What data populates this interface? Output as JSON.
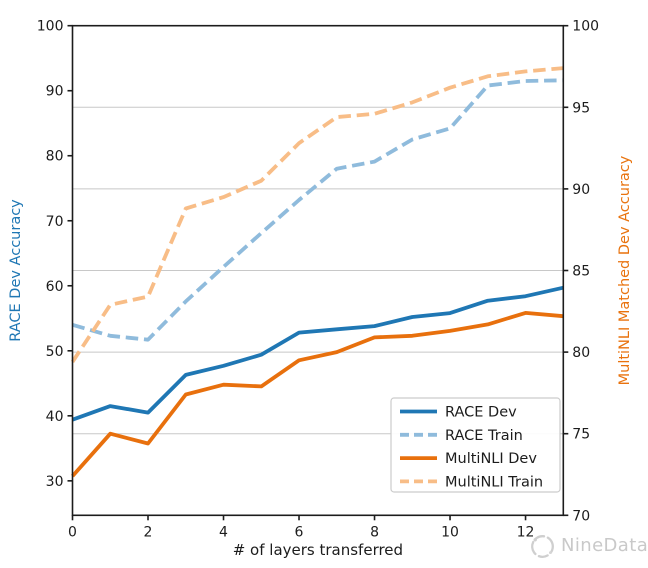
{
  "chart_data": {
    "type": "line",
    "title": "",
    "xlabel": "# of layers transferred",
    "x": [
      0,
      1,
      2,
      3,
      4,
      5,
      6,
      7,
      8,
      9,
      10,
      11,
      12,
      13
    ],
    "xlim": [
      0,
      13
    ],
    "x_ticks": [
      0,
      2,
      4,
      6,
      8,
      10,
      12
    ],
    "left_axis": {
      "label": "RACE Dev Accuracy",
      "color": "#1f77b4",
      "ticks": [
        30,
        40,
        50,
        60,
        70,
        80,
        90,
        100
      ],
      "lim": [
        24.7,
        100
      ]
    },
    "right_axis": {
      "label": "MultiNLI Matched Dev Accuracy",
      "color": "#e9730e",
      "ticks": [
        70,
        75,
        80,
        85,
        90,
        95,
        100
      ],
      "lim": [
        70,
        100
      ]
    },
    "grid": {
      "show": true,
      "follows": "right_axis_ticks",
      "color": "#c8c8c8"
    },
    "legend": {
      "position": "lower right",
      "border_color": "#cccccc",
      "entries": [
        "RACE Dev",
        "RACE Train",
        "MultiNLI Dev",
        "MultiNLI Train"
      ]
    },
    "series": [
      {
        "name": "RACE Dev",
        "axis": "left",
        "line_style": "solid",
        "color": "#1f77b4",
        "values": [
          39.4,
          41.5,
          40.5,
          46.3,
          47.7,
          49.4,
          52.8,
          53.3,
          53.8,
          55.2,
          55.8,
          57.7,
          58.4,
          59.7
        ]
      },
      {
        "name": "RACE Train",
        "axis": "left",
        "line_style": "dashed",
        "color": "#8fbbdc",
        "values": [
          54.0,
          52.3,
          51.7,
          57.6,
          62.9,
          68.1,
          73.2,
          78.0,
          79.1,
          82.5,
          84.2,
          90.8,
          91.5,
          91.6
        ]
      },
      {
        "name": "MultiNLI Dev",
        "axis": "right",
        "line_style": "solid",
        "color": "#e8700d",
        "values": [
          72.4,
          75.0,
          74.4,
          77.4,
          78.0,
          77.9,
          79.5,
          80.0,
          80.9,
          81.0,
          81.3,
          81.7,
          82.4,
          82.2
        ]
      },
      {
        "name": "MultiNLI Train",
        "axis": "right",
        "line_style": "dashed",
        "color": "#f8bd87",
        "values": [
          79.4,
          82.9,
          83.4,
          88.8,
          89.5,
          90.5,
          92.8,
          94.4,
          94.6,
          95.3,
          96.2,
          96.9,
          97.2,
          97.4
        ]
      }
    ],
    "tick_label_color": "#1c1c1c",
    "spine_color": "#1c1c1c"
  },
  "watermark": {
    "brand": "NineData",
    "color": "#c9c9c9",
    "icon": "ninedata-logo"
  }
}
